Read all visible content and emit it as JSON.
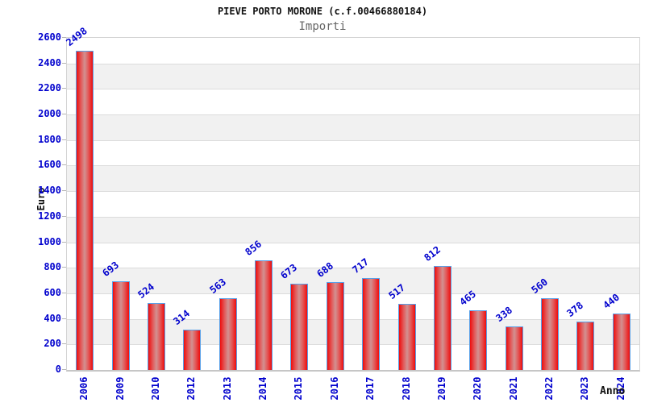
{
  "chart_data": {
    "type": "bar",
    "title": "PIEVE PORTO MORONE (c.f.00466880184)",
    "subtitle": "Importi",
    "xlabel": "Anno",
    "ylabel": "Euro",
    "categories": [
      "2006",
      "2009",
      "2010",
      "2012",
      "2013",
      "2014",
      "2015",
      "2016",
      "2017",
      "2018",
      "2019",
      "2020",
      "2021",
      "2022",
      "2023",
      "2024"
    ],
    "values": [
      2498,
      693,
      524,
      314,
      563,
      856,
      673,
      688,
      717,
      517,
      812,
      465,
      338,
      560,
      378,
      440
    ],
    "ylim": [
      0,
      2600
    ],
    "ytick_step": 200,
    "grid": "horizontal-bands-alternating",
    "legend": "none",
    "colors": {
      "tick_text": "#0000cd",
      "value_label_text": "#0000cd",
      "title_text": "#111111",
      "subtitle_text": "#666666",
      "bar_edge": "#ee0d0d",
      "bar_center": "#d29191",
      "bar_stroke": "#58a0e8",
      "band_gray": "#f1f1f1",
      "band_white": "#ffffff",
      "gridline": "#dcdcdc",
      "axis_line": "#c6c6c6"
    }
  }
}
